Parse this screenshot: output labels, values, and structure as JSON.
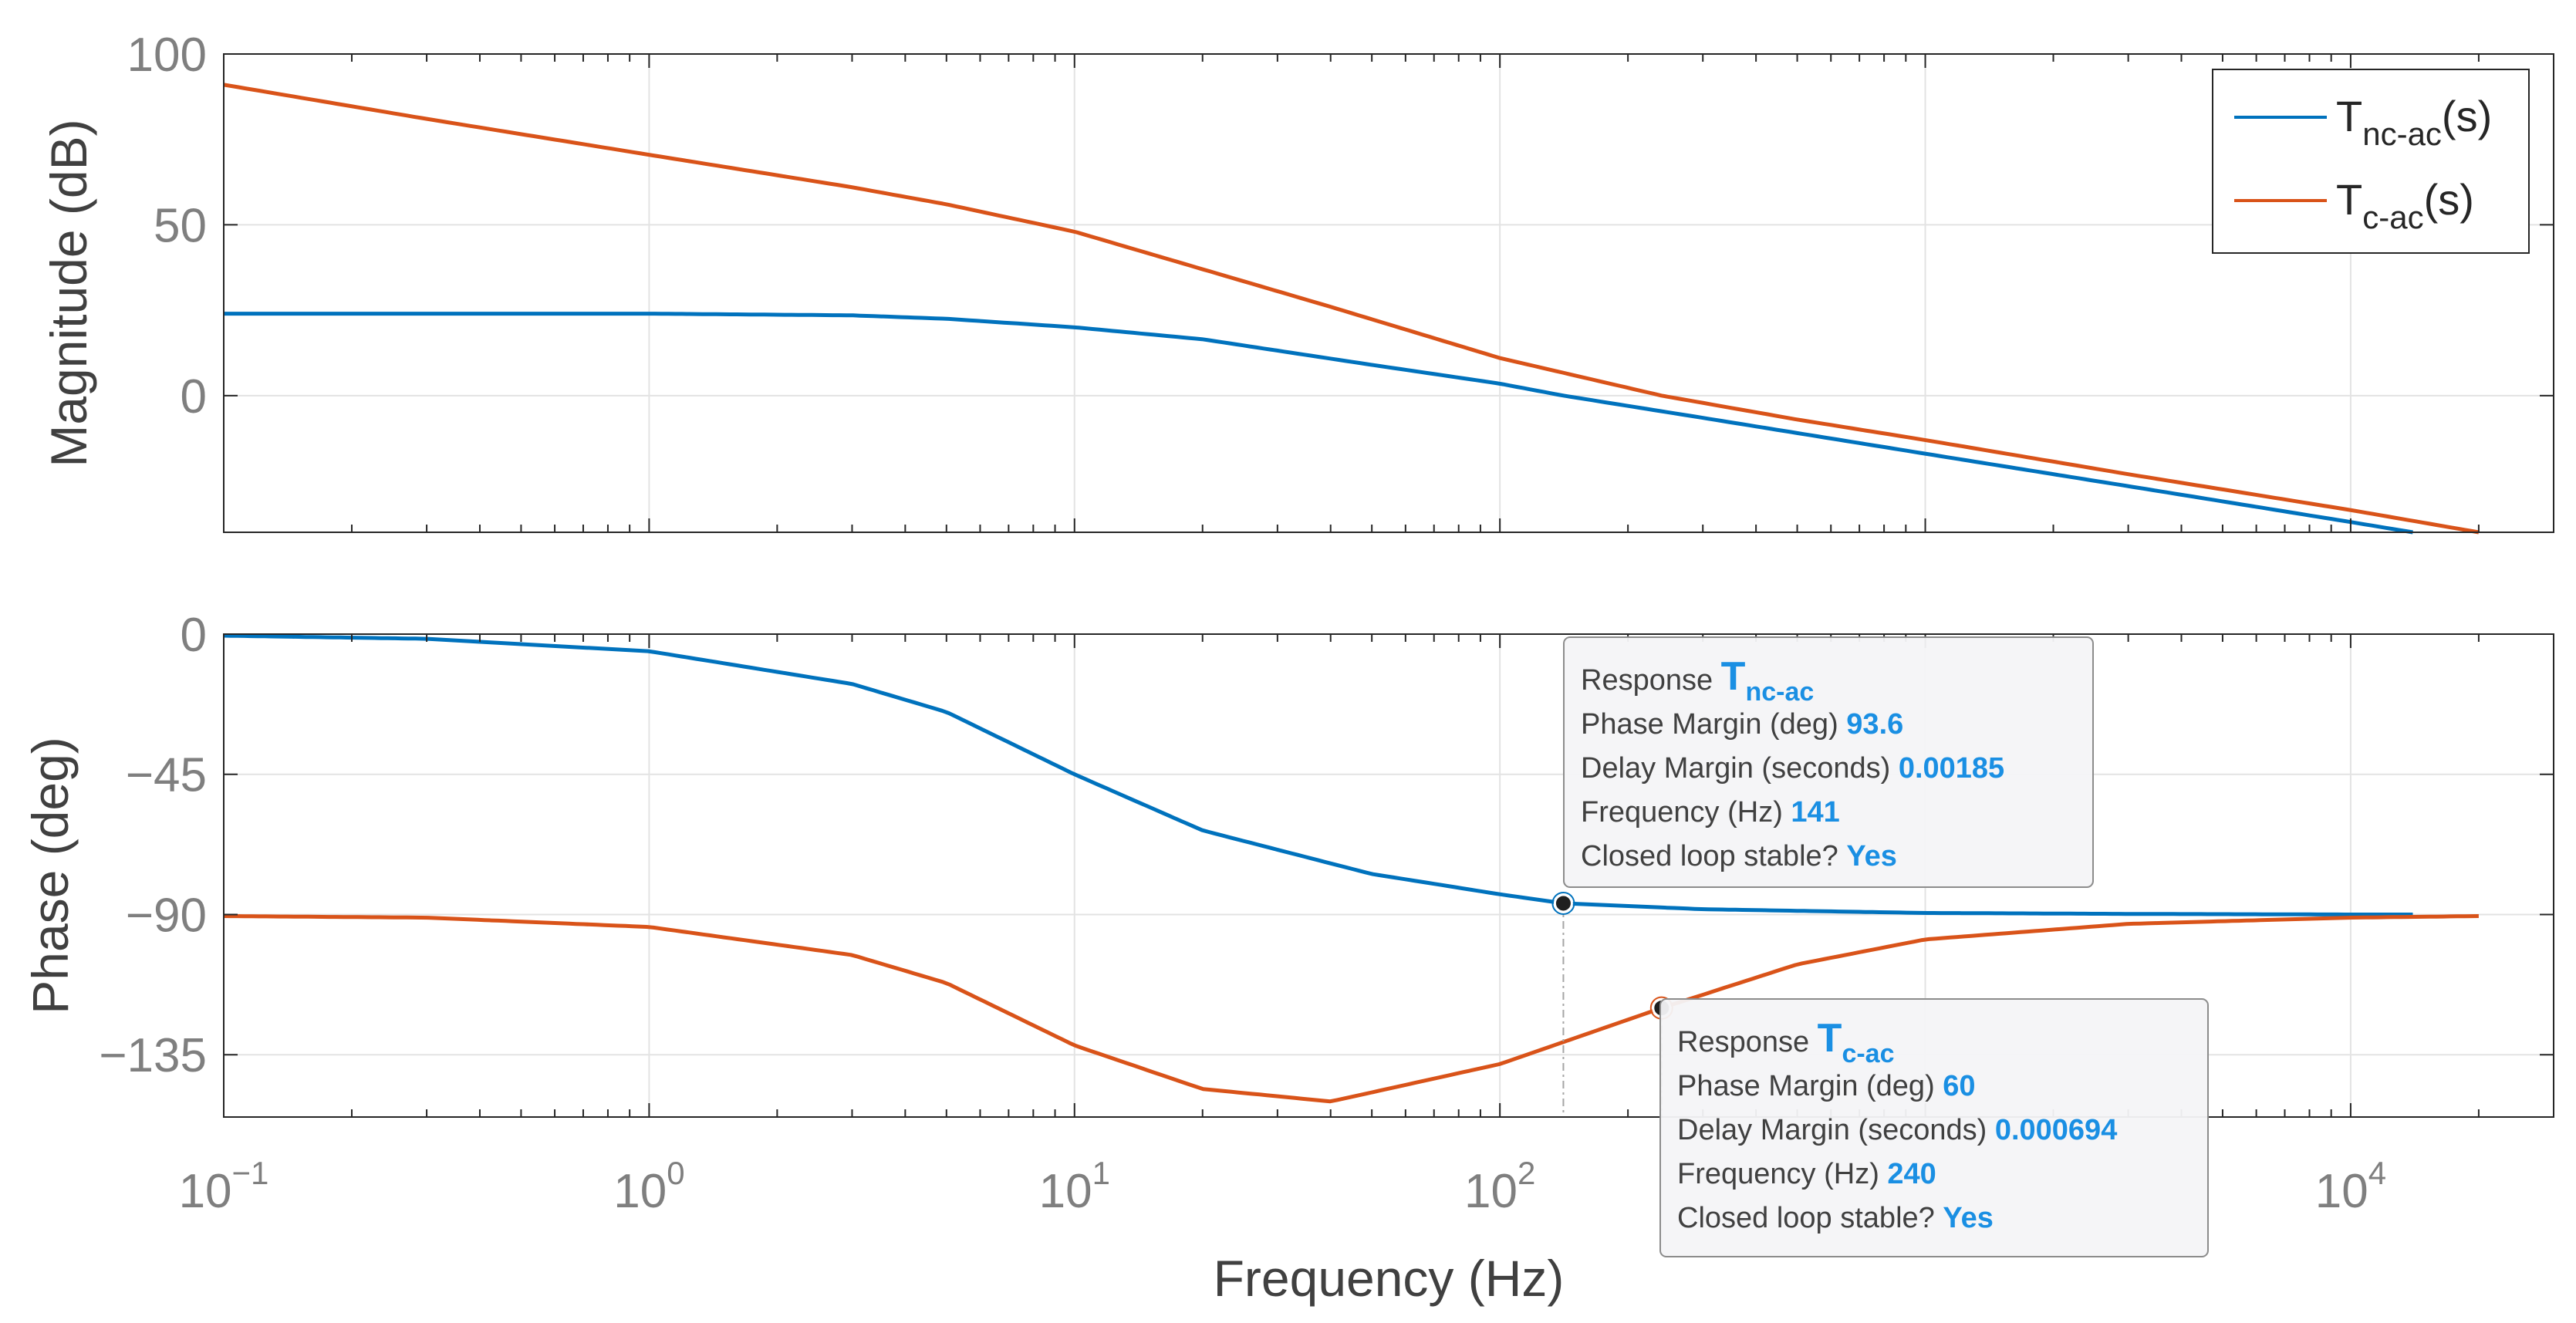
{
  "chart_data": {
    "type": "line",
    "subtype": "bode",
    "x_axis": {
      "label": "Frequency (Hz)",
      "scale": "log",
      "range": [
        0.1,
        30000
      ],
      "tick_values": [
        0.1,
        1,
        10,
        100,
        10000
      ],
      "tick_labels": [
        {
          "base": "10",
          "exp": "−1"
        },
        {
          "base": "10",
          "exp": "0"
        },
        {
          "base": "10",
          "exp": "1"
        },
        {
          "base": "10",
          "exp": "2"
        },
        {
          "base": "10",
          "exp": "4"
        }
      ]
    },
    "magnitude": {
      "ylabel": "Magnitude (dB)",
      "ylim": [
        -40,
        100
      ],
      "yticks": [
        0,
        50,
        100
      ]
    },
    "phase": {
      "ylabel": "Phase (deg)",
      "ylim": [
        -155,
        0
      ],
      "yticks": [
        0,
        -45,
        -90,
        -135
      ],
      "ytick_labels": [
        "0",
        "−45",
        "−90",
        "−135"
      ]
    },
    "grid": true,
    "legend": {
      "position": "top-right",
      "entries": [
        {
          "base": "T",
          "sub": "nc-ac",
          "suffix": "(s)",
          "color": "#0072bd"
        },
        {
          "base": "T",
          "sub": "c-ac",
          "suffix": "(s)",
          "color": "#d95319"
        }
      ]
    },
    "series": [
      {
        "id": "nc",
        "color": "#0072bd",
        "x": [
          0.1,
          0.3,
          1,
          3,
          5,
          10,
          20,
          50,
          100,
          141,
          300,
          1000,
          3000,
          10000,
          14000
        ],
        "magnitude_db": [
          24,
          24,
          24,
          23.5,
          22.5,
          20,
          16.5,
          9,
          3.5,
          0,
          -6.5,
          -17,
          -26.5,
          -37,
          -40
        ],
        "phase_deg": [
          -0.5,
          -1.5,
          -5.5,
          -16,
          -25,
          -45,
          -63,
          -77,
          -83.5,
          -86.4,
          -88.3,
          -89.5,
          -89.8,
          -90,
          -90
        ]
      },
      {
        "id": "c",
        "color": "#d95319",
        "x": [
          0.1,
          0.3,
          1,
          3,
          5,
          10,
          20,
          40,
          100,
          240,
          500,
          1000,
          3000,
          10000,
          20000
        ],
        "magnitude_db": [
          91,
          81,
          70.5,
          61,
          56,
          48,
          37,
          26,
          11,
          0,
          -7,
          -13,
          -23,
          -33.5,
          -40
        ],
        "phase_deg": [
          -90.5,
          -91,
          -94,
          -103,
          -112,
          -132,
          -146,
          -150,
          -138,
          -120,
          -106,
          -98,
          -93,
          -91,
          -90.5
        ]
      }
    ],
    "datatips": [
      {
        "series": "nc",
        "x": 141,
        "phase": -86.4,
        "response_label": "Response",
        "response_base": "T",
        "response_sub": "nc-ac",
        "rows": [
          {
            "label": "Phase Margin (deg)",
            "value": "93.6"
          },
          {
            "label": "Delay Margin (seconds)",
            "value": "0.00185"
          },
          {
            "label": "Frequency (Hz)",
            "value": "141"
          },
          {
            "label": "Closed loop stable?",
            "value": "Yes"
          }
        ]
      },
      {
        "series": "c",
        "x": 240,
        "phase": -120,
        "response_label": "Response",
        "response_base": "T",
        "response_sub": "c-ac",
        "rows": [
          {
            "label": "Phase Margin (deg)",
            "value": "60"
          },
          {
            "label": "Delay Margin (seconds)",
            "value": "0.000694"
          },
          {
            "label": "Frequency (Hz)",
            "value": "240"
          },
          {
            "label": "Closed loop stable?",
            "value": "Yes"
          }
        ]
      }
    ]
  }
}
